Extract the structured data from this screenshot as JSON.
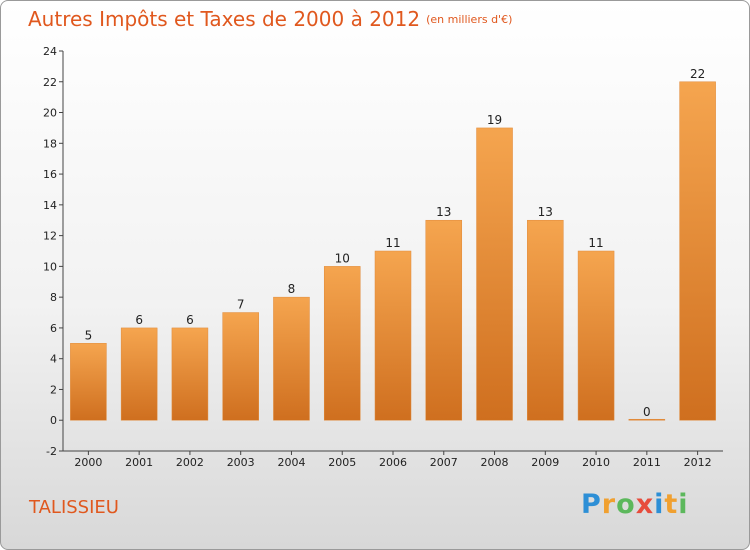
{
  "title": "Autres Impôts et Taxes de 2000 à 2012",
  "subtitle": "(en milliers d'€)",
  "commune": "TALISSIEU",
  "logo": {
    "text": "Proxiti",
    "letters": [
      {
        "ch": "P",
        "color": "#2d8fd6"
      },
      {
        "ch": "r",
        "color": "#f0a030"
      },
      {
        "ch": "o",
        "color": "#5cb85c"
      },
      {
        "ch": "x",
        "color": "#e74c3c"
      },
      {
        "ch": "i",
        "color": "#2d8fd6"
      },
      {
        "ch": "t",
        "color": "#f0a030"
      },
      {
        "ch": "i",
        "color": "#5cb85c"
      }
    ]
  },
  "chart_data": {
    "type": "bar",
    "title": "Autres Impôts et Taxes de 2000 à 2012",
    "subtitle": "(en milliers d'€)",
    "categories": [
      "2000",
      "2001",
      "2002",
      "2003",
      "2004",
      "2005",
      "2006",
      "2007",
      "2008",
      "2009",
      "2010",
      "2011",
      "2012"
    ],
    "values": [
      5,
      6,
      6,
      7,
      8,
      10,
      11,
      13,
      19,
      13,
      11,
      0,
      22
    ],
    "ylim": [
      -2,
      24
    ],
    "yticks": [
      -2,
      0,
      2,
      4,
      6,
      8,
      10,
      12,
      14,
      16,
      18,
      20,
      22,
      24
    ],
    "grid": false,
    "bar_color_top": "#f5a54f",
    "bar_color_bottom": "#cf6f1f"
  }
}
